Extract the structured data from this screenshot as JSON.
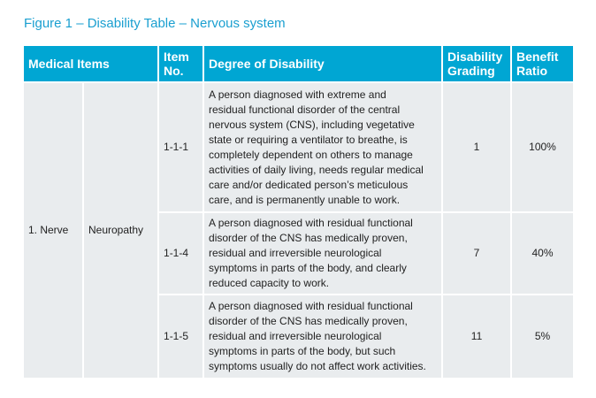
{
  "title": "Figure 1 – Disability Table – Nervous system",
  "headers": {
    "medical_items": "Medical Items",
    "item_no": "Item No.",
    "degree": "Degree of Disability",
    "grading": "Disability Grading",
    "ratio": "Benefit Ratio"
  },
  "category": "1. Nerve",
  "subcategory": "Neuropathy",
  "rows": [
    {
      "item": "1-1-1",
      "degree": "A person diagnosed with extreme and\nresidual functional disorder of the central\nnervous system (CNS), including vegetative\nstate or requiring a ventilator to breathe, is\ncompletely dependent on others to manage\nactivities of daily living, needs regular medical\ncare and/or dedicated person’s meticulous\ncare, and is permanently unable to work.",
      "grading": "1",
      "ratio": "100%"
    },
    {
      "item": "1-1-4",
      "degree": "A person diagnosed with residual functional\ndisorder of the CNS has medically proven,\nresidual and irreversible neurological\nsymptoms in parts of the body, and clearly\nreduced capacity to work.",
      "grading": "7",
      "ratio": "40%"
    },
    {
      "item": "1-1-5",
      "degree": "A person diagnosed with residual functional\ndisorder of the CNS has medically proven,\nresidual and irreversible neurological\nsymptoms in parts of the body, but such\nsymptoms usually do not affect work activities.",
      "grading": "11",
      "ratio": "5%"
    }
  ],
  "colors": {
    "header_bg": "#00a6d3",
    "title": "#1a9fd0",
    "cell_bg": "#e9ecee"
  }
}
